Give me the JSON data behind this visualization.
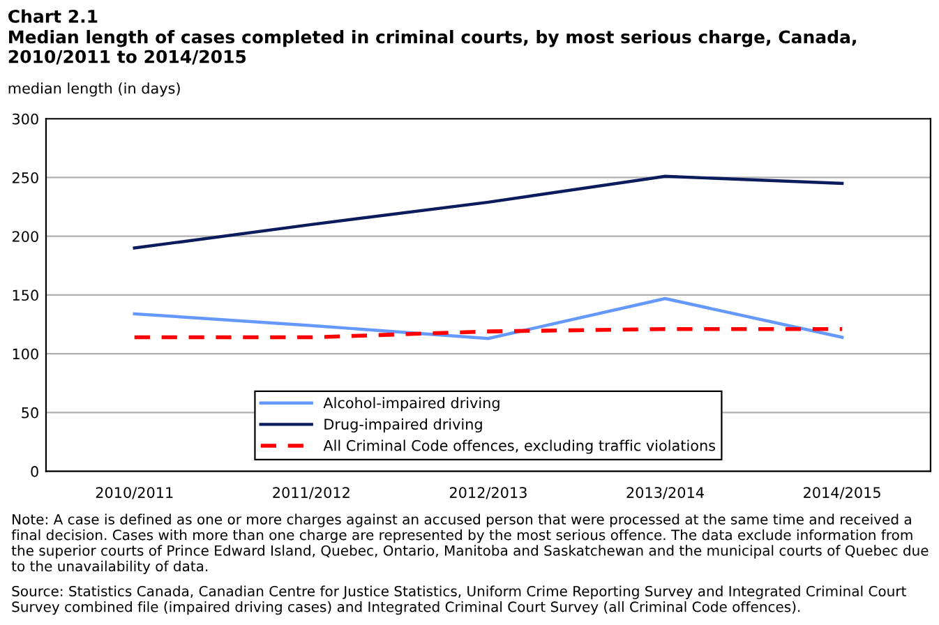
{
  "chart_data": {
    "type": "line",
    "title": "Chart 2.1",
    "subtitle": "Median length of cases completed in criminal courts, by most serious charge, Canada, 2010/2011 to 2014/2015",
    "ylabel": "median length (in days)",
    "categories": [
      "2010/2011",
      "2011/2012",
      "2012/2013",
      "2013/2014",
      "2014/2015"
    ],
    "series": [
      {
        "name": "Alcohol-impaired driving",
        "color": "#6699ff",
        "values": [
          134,
          124,
          113,
          147,
          114
        ]
      },
      {
        "name": "Drug-impaired driving",
        "color": "#0a1c5c",
        "values": [
          190,
          210,
          229,
          251,
          245
        ]
      },
      {
        "name": "All Criminal Code offences, excluding traffic violations",
        "color": "#ff0000",
        "values": [
          114,
          114,
          119,
          121,
          121
        ],
        "line_style": "dashed"
      }
    ],
    "ylim": [
      0,
      300
    ],
    "yticks": [
      0,
      50,
      100,
      150,
      200,
      250,
      300
    ],
    "grid": "y",
    "legend": "bottom",
    "marker": "none",
    "annotations": [
      "Note: A case is defined as one or more charges against an accused person that were processed at the same time and received a final decision. Cases with more than one charge are represented by the most serious offence. The data exclude information from the superior courts of Prince Edward Island, Quebec, Ontario, Manitoba and Saskatchewan and the municipal courts of Quebec due to the unavailability of data.",
      "Source: Statistics Canada, Canadian Centre for Justice Statistics, Uniform Crime Reporting Survey and Integrated Criminal Court Survey combined file (impaired driving cases) and Integrated Criminal Court Survey (all Criminal Code offences)."
    ]
  }
}
